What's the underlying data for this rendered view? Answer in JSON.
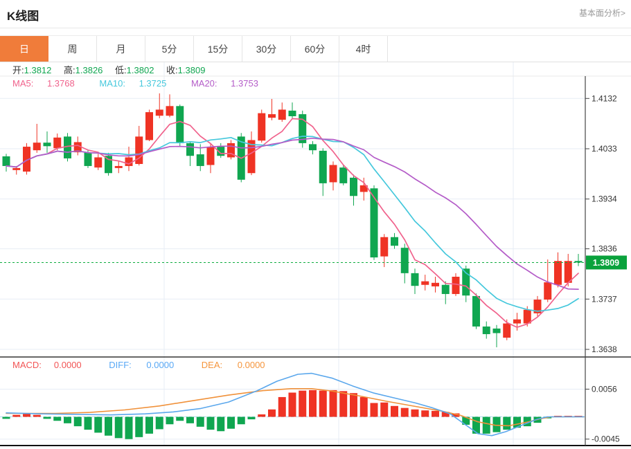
{
  "header": {
    "title": "K线图",
    "link": "基本面分析>"
  },
  "tabs": {
    "items": [
      "日",
      "周",
      "月",
      "5分",
      "15分",
      "30分",
      "60分",
      "4时"
    ],
    "active": "日"
  },
  "ohlc": {
    "open_label": "开:",
    "open": "1.3812",
    "high_label": "高:",
    "high": "1.3826",
    "low_label": "低:",
    "low": "1.3802",
    "close_label": "收:",
    "close": "1.3809"
  },
  "ma_legend": {
    "ma5_label": "MA5:",
    "ma5": "1.3768",
    "ma10_label": "MA10:",
    "ma10": "1.3725",
    "ma20_label": "MA20:",
    "ma20": "1.3753"
  },
  "macd_legend": {
    "macd_label": "MACD:",
    "macd": "0.0000",
    "diff_label": "DIFF:",
    "diff": "0.0000",
    "dea_label": "DEA:",
    "dea": "0.0000"
  },
  "colors": {
    "up": "#ef3324",
    "down": "#10a650",
    "ma5": "#f0628c",
    "ma10": "#45c8dc",
    "ma20": "#b45cc8",
    "macd_text": "#f25454",
    "diff_text": "#58a8f5",
    "dea_text": "#f5953c",
    "diff_line": "#5aa7ec",
    "dea_line": "#f0913a",
    "tab_accent": "#f07c3a",
    "price_badge": "#0aa23c",
    "price_line": "#0bab3c",
    "grid": "#e7edf5",
    "axis": "#444",
    "label": "#333"
  },
  "chart_data": {
    "type": "candlestick+macd",
    "title": "K线图",
    "legend": [
      "MA5",
      "MA10",
      "MA20",
      "MACD",
      "DIFF",
      "DEA"
    ],
    "main": {
      "yticks": [
        1.4132,
        1.4033,
        1.3934,
        1.3836,
        1.3737,
        1.3638
      ],
      "ylim": [
        1.3623,
        1.4176
      ],
      "grid": true,
      "current_price": 1.3809,
      "current_price_label": "1.3809",
      "ma_periods": [
        5,
        10,
        20
      ],
      "candles_ohlc": [
        [
          1.4018,
          1.4023,
          1.3988,
          1.3999
        ],
        [
          1.3991,
          1.3999,
          1.3982,
          1.3995
        ],
        [
          1.3988,
          1.4044,
          1.3982,
          1.4037
        ],
        [
          1.403,
          1.4082,
          1.4025,
          1.4045
        ],
        [
          1.4045,
          1.4067,
          1.4025,
          1.4038
        ],
        [
          1.4034,
          1.4063,
          1.403,
          1.4055
        ],
        [
          1.4057,
          1.4064,
          1.4008,
          1.4014
        ],
        [
          1.4026,
          1.4057,
          1.402,
          1.4046
        ],
        [
          1.4026,
          1.4031,
          1.3995,
          1.3999
        ],
        [
          1.3996,
          1.4023,
          1.3991,
          1.4016
        ],
        [
          1.4019,
          1.4025,
          1.398,
          1.3985
        ],
        [
          1.3995,
          1.4008,
          1.3985,
          1.3999
        ],
        [
          1.3999,
          1.4037,
          1.3989,
          1.4016
        ],
        [
          1.4003,
          1.4078,
          1.4,
          1.4057
        ],
        [
          1.405,
          1.411,
          1.4048,
          1.4105
        ],
        [
          1.4098,
          1.4142,
          1.4093,
          1.411
        ],
        [
          1.4098,
          1.414,
          1.4095,
          1.4117
        ],
        [
          1.4117,
          1.412,
          1.4038,
          1.4044
        ],
        [
          1.4044,
          1.4046,
          1.3999,
          1.4019
        ],
        [
          1.4022,
          1.4042,
          1.3989,
          1.3999
        ],
        [
          1.4001,
          1.4044,
          1.3985,
          1.4037
        ],
        [
          1.4037,
          1.4044,
          1.4015,
          1.4019
        ],
        [
          1.4016,
          1.405,
          1.4012,
          1.4044
        ],
        [
          1.4057,
          1.4064,
          1.3967,
          1.3972
        ],
        [
          1.3985,
          1.4067,
          1.3981,
          1.405
        ],
        [
          1.4049,
          1.411,
          1.4045,
          1.4103
        ],
        [
          1.4094,
          1.4131,
          1.4089,
          1.4101
        ],
        [
          1.409,
          1.4124,
          1.4086,
          1.411
        ],
        [
          1.4108,
          1.4124,
          1.4091,
          1.4097
        ],
        [
          1.4101,
          1.4108,
          1.4035,
          1.4044
        ],
        [
          1.4042,
          1.4048,
          1.4022,
          1.403
        ],
        [
          1.4029,
          1.4034,
          1.394,
          1.3965
        ],
        [
          1.3967,
          1.4008,
          1.3951,
          1.4001
        ],
        [
          1.3996,
          1.4001,
          1.3961,
          1.3965
        ],
        [
          1.3976,
          1.3982,
          1.3921,
          1.394
        ],
        [
          1.3948,
          1.3976,
          1.3931,
          1.3961
        ],
        [
          1.3955,
          1.3961,
          1.3814,
          1.3819
        ],
        [
          1.3821,
          1.3865,
          1.38,
          1.3859
        ],
        [
          1.3859,
          1.3867,
          1.3836,
          1.3842
        ],
        [
          1.3838,
          1.3846,
          1.3768,
          1.3788
        ],
        [
          1.3788,
          1.3797,
          1.3747,
          1.3763
        ],
        [
          1.3765,
          1.3785,
          1.3754,
          1.3772
        ],
        [
          1.3762,
          1.3781,
          1.375,
          1.3769
        ],
        [
          1.3765,
          1.3772,
          1.3727,
          1.3747
        ],
        [
          1.3747,
          1.3788,
          1.3743,
          1.3781
        ],
        [
          1.3797,
          1.3803,
          1.3731,
          1.3744
        ],
        [
          1.3743,
          1.3748,
          1.3678,
          1.3683
        ],
        [
          1.3683,
          1.3693,
          1.3659,
          1.3668
        ],
        [
          1.3679,
          1.3686,
          1.3642,
          1.367
        ],
        [
          1.3661,
          1.3697,
          1.3656,
          1.3689
        ],
        [
          1.3689,
          1.371,
          1.3675,
          1.3697
        ],
        [
          1.3689,
          1.3723,
          1.3683,
          1.3716
        ],
        [
          1.3709,
          1.3743,
          1.3703,
          1.3736
        ],
        [
          1.3736,
          1.3815,
          1.3731,
          1.377
        ],
        [
          1.3765,
          1.3829,
          1.376,
          1.3812
        ],
        [
          1.3769,
          1.3826,
          1.3762,
          1.3812
        ],
        [
          1.3812,
          1.3826,
          1.3802,
          1.3809
        ]
      ]
    },
    "macd": {
      "yticks": [
        0.0056,
        -0.0045
      ],
      "ylim": [
        -0.0058,
        0.0121
      ],
      "zero_line": 0,
      "hist": [
        -0.0004,
        0.0004,
        0.0006,
        0.0004,
        -0.0004,
        -0.0008,
        -0.0013,
        -0.0019,
        -0.0026,
        -0.0032,
        -0.0038,
        -0.0043,
        -0.0045,
        -0.0041,
        -0.0034,
        -0.0025,
        -0.0015,
        -0.0008,
        -0.0013,
        -0.002,
        -0.0026,
        -0.0029,
        -0.0024,
        -0.0015,
        -0.0005,
        0.0005,
        0.0015,
        0.004,
        0.0049,
        0.0053,
        0.0054,
        0.0053,
        0.0054,
        0.0052,
        0.0048,
        0.004,
        0.0028,
        0.0029,
        0.0022,
        0.0018,
        0.0015,
        0.0013,
        0.0012,
        0.001,
        0.0007,
        -0.0016,
        -0.0034,
        -0.0034,
        -0.0031,
        -0.0026,
        -0.0022,
        -0.0019,
        -0.0012,
        -0.0003,
        0,
        0,
        0
      ],
      "diff_points": [
        [
          9,
          0.0008
        ],
        [
          60,
          0.0006
        ],
        [
          110,
          0.0005
        ],
        [
          160,
          0.0004
        ],
        [
          210,
          0.0006
        ],
        [
          250,
          0.001
        ],
        [
          290,
          0.0017
        ],
        [
          330,
          0.003
        ],
        [
          370,
          0.0052
        ],
        [
          400,
          0.0072
        ],
        [
          430,
          0.0086
        ],
        [
          450,
          0.0088
        ],
        [
          480,
          0.0078
        ],
        [
          510,
          0.0062
        ],
        [
          540,
          0.0048
        ],
        [
          570,
          0.0038
        ],
        [
          600,
          0.0028
        ],
        [
          625,
          0.0018
        ],
        [
          650,
          0.0006
        ],
        [
          670,
          -0.0014
        ],
        [
          690,
          -0.0034
        ],
        [
          710,
          -0.0038
        ],
        [
          730,
          -0.003
        ],
        [
          755,
          -0.0016
        ],
        [
          775,
          -0.0005
        ],
        [
          790,
          0
        ],
        [
          843,
          0
        ]
      ],
      "dea_points": [
        [
          9,
          0.0007
        ],
        [
          80,
          0.0007
        ],
        [
          130,
          0.0009
        ],
        [
          180,
          0.0014
        ],
        [
          230,
          0.0022
        ],
        [
          280,
          0.0033
        ],
        [
          330,
          0.0044
        ],
        [
          380,
          0.0053
        ],
        [
          420,
          0.0057
        ],
        [
          450,
          0.0057
        ],
        [
          480,
          0.0052
        ],
        [
          520,
          0.0042
        ],
        [
          560,
          0.0031
        ],
        [
          600,
          0.0021
        ],
        [
          640,
          0.0011
        ],
        [
          665,
          0.0003
        ],
        [
          690,
          -0.001
        ],
        [
          715,
          -0.0017
        ],
        [
          735,
          -0.0018
        ],
        [
          760,
          -0.0011
        ],
        [
          780,
          -0.0004
        ],
        [
          795,
          0
        ],
        [
          843,
          0
        ]
      ]
    }
  }
}
